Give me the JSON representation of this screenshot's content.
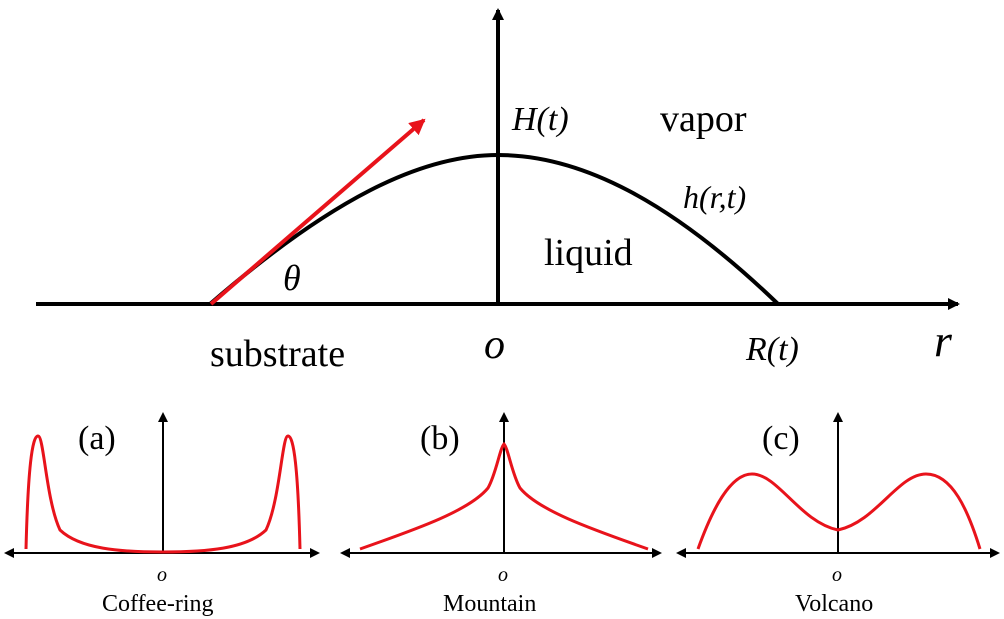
{
  "main": {
    "height_label": "H(t)",
    "vapor_label": "vapor",
    "profile_label": "h(r,t)",
    "liquid_label": "liquid",
    "angle_label": "θ",
    "substrate_label": "substrate",
    "origin_label": "o",
    "radius_label": "R(t)",
    "r_axis_label": "r"
  },
  "panels": [
    {
      "tag": "(a)",
      "origin": "o",
      "caption": "Coffee-ring"
    },
    {
      "tag": "(b)",
      "origin": "o",
      "caption": "Mountain"
    },
    {
      "tag": "(c)",
      "origin": "o",
      "caption": "Volcano"
    }
  ],
  "colors": {
    "axis": "#000000",
    "profile": "#000000",
    "arrow": "#e8131b",
    "deposit": "#e8131b"
  }
}
